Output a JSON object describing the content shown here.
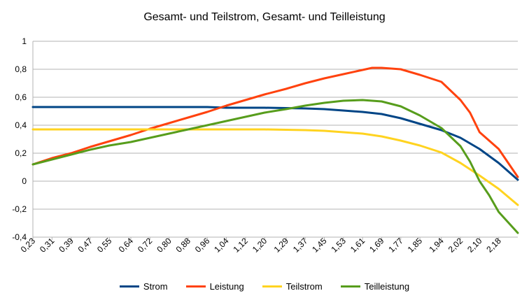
{
  "chart_data": {
    "type": "line",
    "title": "Gesamt- und Teilstrom, Gesamt- und Teilleistung",
    "xlabel": "",
    "ylabel": "",
    "ylim": [
      -0.4,
      1
    ],
    "yticks": [
      "1",
      "0,8",
      "0,6",
      "0,4",
      "0,2",
      "0",
      "-0,2",
      "-0,4"
    ],
    "ytick_values": [
      1,
      0.8,
      0.6,
      0.4,
      0.2,
      0,
      -0.2,
      -0.4
    ],
    "xlim": [
      0.23,
      2.26
    ],
    "xticks": [
      0.23,
      0.31,
      0.39,
      0.47,
      0.55,
      0.64,
      0.72,
      0.8,
      0.88,
      0.96,
      1.04,
      1.12,
      1.2,
      1.29,
      1.37,
      1.45,
      1.53,
      1.61,
      1.69,
      1.77,
      1.85,
      1.94,
      2.02,
      2.1,
      2.18
    ],
    "xtick_labels": [
      "0,23",
      "0,31",
      "0,39",
      "0,47",
      "0,55",
      "0,64",
      "0,72",
      "0,80",
      "0,88",
      "0,96",
      "1,04",
      "1,12",
      "1,20",
      "1,29",
      "1,37",
      "1,45",
      "1,53",
      "1,61",
      "1,69",
      "1,77",
      "1,85",
      "1,94",
      "2,02",
      "2,10",
      "2,18"
    ],
    "grid": "horizontal",
    "legend_position": "bottom",
    "series": [
      {
        "name": "Strom",
        "color": "#004586",
        "x": [
          0.23,
          0.39,
          0.55,
          0.72,
          0.88,
          0.96,
          1.04,
          1.2,
          1.37,
          1.45,
          1.53,
          1.61,
          1.69,
          1.77,
          1.85,
          1.94,
          2.02,
          2.1,
          2.18,
          2.26
        ],
        "values": [
          0.53,
          0.53,
          0.53,
          0.53,
          0.53,
          0.53,
          0.525,
          0.525,
          0.52,
          0.515,
          0.505,
          0.495,
          0.48,
          0.45,
          0.41,
          0.365,
          0.31,
          0.23,
          0.13,
          0.01
        ]
      },
      {
        "name": "Leistung",
        "color": "#ff420e",
        "x": [
          0.23,
          0.31,
          0.39,
          0.47,
          0.55,
          0.64,
          0.72,
          0.8,
          0.88,
          0.96,
          1.04,
          1.12,
          1.2,
          1.29,
          1.37,
          1.45,
          1.53,
          1.61,
          1.65,
          1.69,
          1.73,
          1.77,
          1.85,
          1.94,
          2.02,
          2.06,
          2.1,
          2.18,
          2.26
        ],
        "values": [
          0.12,
          0.165,
          0.2,
          0.245,
          0.285,
          0.33,
          0.375,
          0.415,
          0.455,
          0.495,
          0.54,
          0.58,
          0.62,
          0.66,
          0.7,
          0.735,
          0.765,
          0.795,
          0.81,
          0.81,
          0.805,
          0.8,
          0.76,
          0.71,
          0.58,
          0.49,
          0.35,
          0.23,
          0.03
        ]
      },
      {
        "name": "Teilstrom",
        "color": "#ffd320",
        "x": [
          0.23,
          0.39,
          0.55,
          0.72,
          0.88,
          1.04,
          1.2,
          1.37,
          1.45,
          1.53,
          1.61,
          1.69,
          1.77,
          1.85,
          1.94,
          2.02,
          2.1,
          2.18,
          2.26
        ],
        "values": [
          0.37,
          0.37,
          0.37,
          0.37,
          0.37,
          0.37,
          0.37,
          0.365,
          0.36,
          0.35,
          0.34,
          0.32,
          0.29,
          0.255,
          0.205,
          0.13,
          0.04,
          -0.055,
          -0.17
        ]
      },
      {
        "name": "Teilleistung",
        "color": "#579d1c",
        "x": [
          0.23,
          0.31,
          0.39,
          0.47,
          0.55,
          0.64,
          0.72,
          0.8,
          0.88,
          0.96,
          1.04,
          1.12,
          1.2,
          1.29,
          1.37,
          1.45,
          1.53,
          1.61,
          1.69,
          1.77,
          1.85,
          1.94,
          2.02,
          2.06,
          2.1,
          2.14,
          2.18,
          2.26
        ],
        "values": [
          0.12,
          0.155,
          0.19,
          0.225,
          0.255,
          0.28,
          0.31,
          0.34,
          0.37,
          0.4,
          0.43,
          0.46,
          0.49,
          0.515,
          0.54,
          0.56,
          0.575,
          0.58,
          0.57,
          0.535,
          0.47,
          0.38,
          0.25,
          0.14,
          0.0,
          -0.1,
          -0.22,
          -0.37
        ]
      }
    ]
  }
}
